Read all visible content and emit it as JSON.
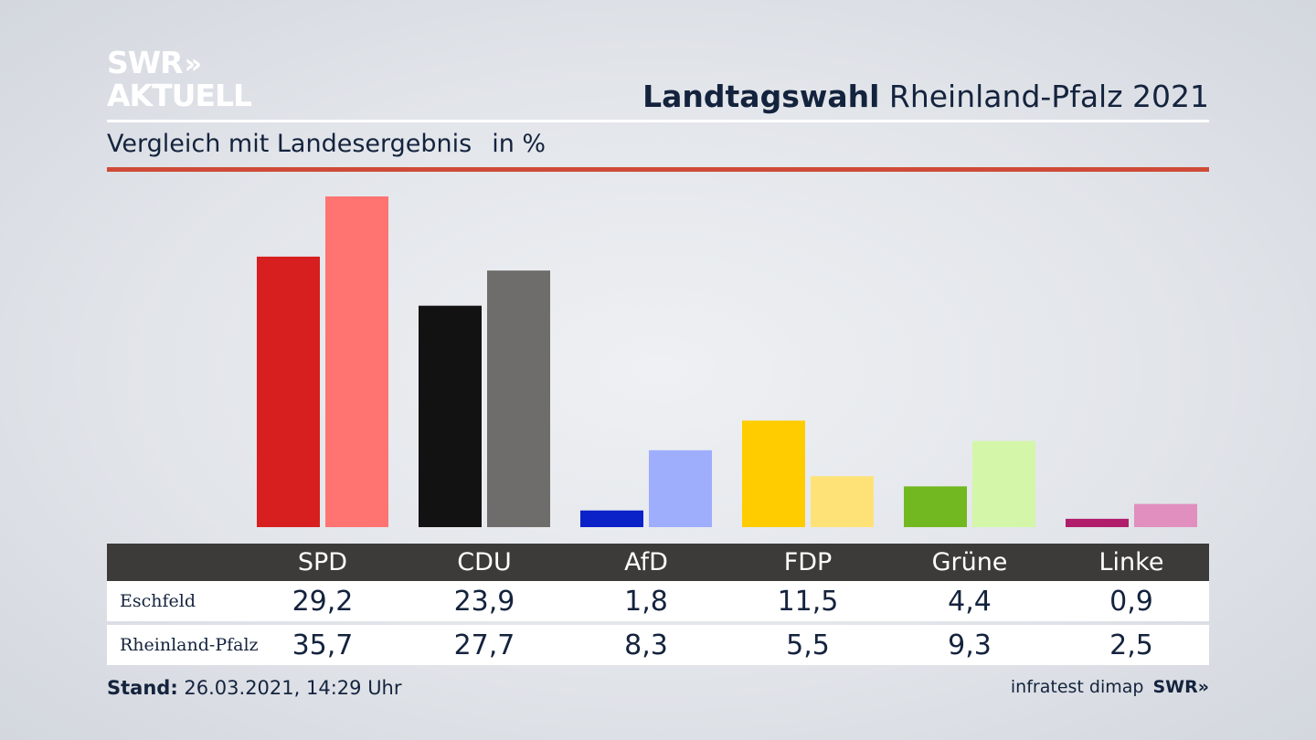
{
  "header": {
    "logo_line1": "SWR",
    "logo_chevrons": "»",
    "logo_line2": "AKTUELL",
    "title_bold": "Landtagswahl",
    "title_rest": "Rheinland-Pfalz 2021",
    "subtitle": "Vergleich mit Landesergebnis",
    "unit": "in %"
  },
  "chart_data": {
    "type": "bar",
    "categories": [
      "SPD",
      "CDU",
      "AfD",
      "FDP",
      "Grüne",
      "Linke"
    ],
    "series": [
      {
        "name": "Eschfeld",
        "values": [
          29.2,
          23.9,
          1.8,
          11.5,
          4.4,
          0.9
        ],
        "labels": [
          "29,2",
          "23,9",
          "1,8",
          "11,5",
          "4,4",
          "0,9"
        ],
        "colors": [
          "#d71f20",
          "#121212",
          "#0b22c9",
          "#ffcc00",
          "#72b820",
          "#b01e6b"
        ]
      },
      {
        "name": "Rheinland-Pfalz",
        "values": [
          35.7,
          27.7,
          8.3,
          5.5,
          9.3,
          2.5
        ],
        "labels": [
          "35,7",
          "27,7",
          "8,3",
          "5,5",
          "9,3",
          "2,5"
        ],
        "colors": [
          "#ff7470",
          "#6f6d6b",
          "#9eaefd",
          "#ffe277",
          "#d3f6a8",
          "#e08fbe"
        ]
      }
    ],
    "ylim": [
      0,
      36
    ]
  },
  "footer": {
    "stand_label": "Stand:",
    "stand_value": "26.03.2021, 14:29 Uhr",
    "source": "infratest dimap",
    "brand": "SWR»"
  }
}
